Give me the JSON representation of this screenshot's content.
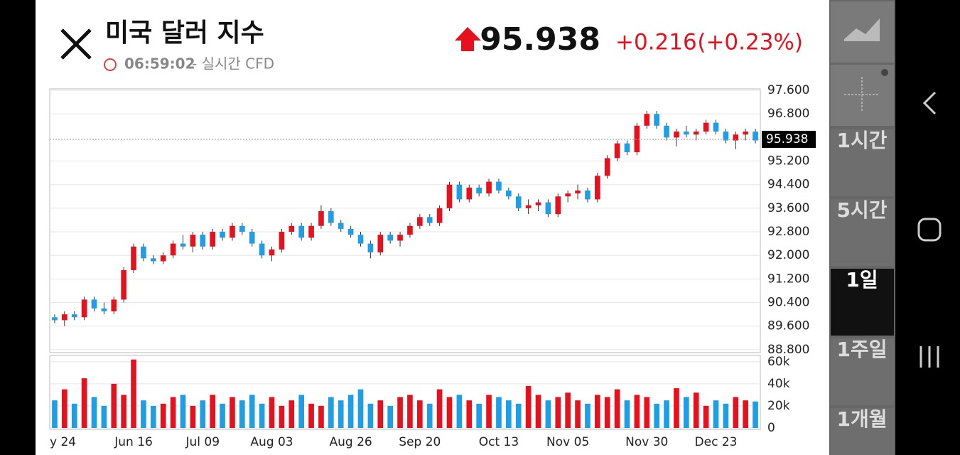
{
  "header": {
    "title": "미국 달러 지수",
    "time": "06:59:02",
    "source": "- 실시간 CFD",
    "price": "95.938",
    "change": "+0.216",
    "change_pct": "(+0.23%)"
  },
  "sidebar": {
    "items": [
      "1시간",
      "5시간",
      "1일",
      "1주일",
      "1개월"
    ],
    "selected": "1일"
  },
  "chart_data": {
    "type": "candlestick",
    "up_color": "#e8101c",
    "down_color": "#1e9ee6",
    "categories": [
      "y 24",
      null,
      null,
      null,
      null,
      null,
      null,
      null,
      "Jun 16",
      null,
      null,
      null,
      null,
      null,
      null,
      "Jul 09",
      null,
      null,
      null,
      null,
      null,
      null,
      "Aug 03",
      null,
      null,
      null,
      null,
      null,
      null,
      null,
      "Aug 26",
      null,
      null,
      null,
      null,
      null,
      null,
      "Sep 20",
      null,
      null,
      null,
      null,
      null,
      null,
      null,
      "Oct 13",
      null,
      null,
      null,
      null,
      null,
      null,
      "Nov 05",
      null,
      null,
      null,
      null,
      null,
      null,
      null,
      "Nov 30",
      null,
      null,
      null,
      null,
      null,
      null,
      "Dec 23",
      null,
      null,
      null,
      null
    ],
    "ohlc": [
      [
        89.9,
        90.0,
        89.7,
        89.8
      ],
      [
        89.8,
        90.1,
        89.6,
        90.0
      ],
      [
        90.0,
        90.1,
        89.8,
        89.9
      ],
      [
        89.9,
        90.6,
        89.8,
        90.5
      ],
      [
        90.5,
        90.6,
        90.1,
        90.2
      ],
      [
        90.2,
        90.4,
        90.0,
        90.1
      ],
      [
        90.1,
        90.6,
        90.0,
        90.5
      ],
      [
        90.5,
        91.6,
        90.4,
        91.5
      ],
      [
        91.5,
        92.4,
        91.4,
        92.3
      ],
      [
        92.3,
        92.4,
        91.8,
        91.9
      ],
      [
        91.9,
        92.0,
        91.7,
        91.8
      ],
      [
        91.8,
        92.1,
        91.7,
        92.0
      ],
      [
        92.0,
        92.5,
        91.9,
        92.4
      ],
      [
        92.4,
        92.7,
        92.2,
        92.3
      ],
      [
        92.3,
        92.8,
        92.1,
        92.7
      ],
      [
        92.7,
        92.8,
        92.2,
        92.3
      ],
      [
        92.3,
        92.9,
        92.2,
        92.8
      ],
      [
        92.8,
        92.9,
        92.5,
        92.6
      ],
      [
        92.6,
        93.1,
        92.5,
        93.0
      ],
      [
        93.0,
        93.1,
        92.7,
        92.8
      ],
      [
        92.8,
        92.9,
        92.3,
        92.4
      ],
      [
        92.4,
        92.5,
        91.9,
        92.0
      ],
      [
        92.0,
        92.3,
        91.8,
        92.2
      ],
      [
        92.2,
        92.9,
        92.1,
        92.8
      ],
      [
        92.8,
        93.1,
        92.7,
        93.0
      ],
      [
        93.0,
        93.1,
        92.5,
        92.6
      ],
      [
        92.6,
        93.1,
        92.5,
        93.0
      ],
      [
        93.0,
        93.7,
        92.9,
        93.5
      ],
      [
        93.5,
        93.6,
        93.0,
        93.1
      ],
      [
        93.1,
        93.2,
        92.8,
        92.9
      ],
      [
        92.9,
        93.0,
        92.6,
        92.7
      ],
      [
        92.7,
        92.8,
        92.3,
        92.4
      ],
      [
        92.4,
        92.5,
        91.9,
        92.1
      ],
      [
        92.1,
        92.8,
        92.0,
        92.7
      ],
      [
        92.7,
        92.8,
        92.4,
        92.5
      ],
      [
        92.5,
        92.8,
        92.3,
        92.7
      ],
      [
        92.7,
        93.1,
        92.6,
        93.0
      ],
      [
        93.0,
        93.4,
        92.9,
        93.3
      ],
      [
        93.3,
        93.4,
        93.0,
        93.1
      ],
      [
        93.1,
        93.7,
        93.0,
        93.6
      ],
      [
        93.6,
        94.5,
        93.5,
        94.4
      ],
      [
        94.4,
        94.5,
        93.8,
        93.9
      ],
      [
        93.9,
        94.4,
        93.8,
        94.3
      ],
      [
        94.3,
        94.4,
        94.0,
        94.1
      ],
      [
        94.1,
        94.6,
        94.0,
        94.5
      ],
      [
        94.5,
        94.6,
        94.1,
        94.2
      ],
      [
        94.2,
        94.3,
        93.9,
        94.0
      ],
      [
        94.0,
        94.1,
        93.5,
        93.6
      ],
      [
        93.6,
        93.9,
        93.4,
        93.7
      ],
      [
        93.7,
        93.9,
        93.5,
        93.8
      ],
      [
        93.8,
        93.9,
        93.3,
        93.4
      ],
      [
        93.4,
        94.1,
        93.3,
        94.0
      ],
      [
        94.0,
        94.2,
        93.8,
        94.1
      ],
      [
        94.1,
        94.4,
        93.9,
        94.2
      ],
      [
        94.2,
        94.3,
        93.8,
        93.9
      ],
      [
        93.9,
        94.8,
        93.8,
        94.7
      ],
      [
        94.7,
        95.4,
        94.6,
        95.3
      ],
      [
        95.3,
        95.9,
        95.2,
        95.8
      ],
      [
        95.8,
        95.9,
        95.4,
        95.5
      ],
      [
        95.5,
        96.5,
        95.4,
        96.4
      ],
      [
        96.4,
        96.9,
        96.3,
        96.8
      ],
      [
        96.8,
        96.9,
        96.3,
        96.4
      ],
      [
        96.4,
        96.5,
        95.9,
        96.0
      ],
      [
        96.0,
        96.3,
        95.7,
        96.2
      ],
      [
        96.2,
        96.4,
        96.0,
        96.1
      ],
      [
        96.1,
        96.3,
        95.9,
        96.2
      ],
      [
        96.2,
        96.6,
        96.1,
        96.5
      ],
      [
        96.5,
        96.6,
        96.1,
        96.2
      ],
      [
        96.2,
        96.3,
        95.8,
        95.9
      ],
      [
        95.9,
        96.2,
        95.6,
        96.1
      ],
      [
        96.1,
        96.3,
        95.9,
        96.2
      ],
      [
        96.2,
        96.3,
        95.8,
        95.9
      ]
    ],
    "volume": [
      25000,
      35000,
      22000,
      45000,
      28000,
      20000,
      40000,
      30000,
      62000,
      25000,
      20000,
      22000,
      28000,
      30000,
      20000,
      25000,
      30000,
      22000,
      28000,
      25000,
      30000,
      22000,
      28000,
      20000,
      25000,
      30000,
      22000,
      20000,
      28000,
      25000,
      30000,
      35000,
      22000,
      25000,
      20000,
      28000,
      30000,
      25000,
      22000,
      35000,
      28000,
      30000,
      25000,
      22000,
      30000,
      28000,
      25000,
      22000,
      38000,
      30000,
      25000,
      28000,
      32000,
      25000,
      22000,
      30000,
      28000,
      35000,
      25000,
      30000,
      28000,
      22000,
      25000,
      36000,
      28000,
      32000,
      20000,
      25000,
      22000,
      28000,
      25000,
      24000
    ],
    "last_price": 95.938,
    "ylim": [
      88.7,
      97.65
    ],
    "yticks": [
      {
        "value": 88.8,
        "label": "88.800"
      },
      {
        "value": 89.6,
        "label": "89.600"
      },
      {
        "value": 90.4,
        "label": "90.400"
      },
      {
        "value": 91.2,
        "label": "91.200"
      },
      {
        "value": 92.0,
        "label": "92.000"
      },
      {
        "value": 92.8,
        "label": "92.800"
      },
      {
        "value": 93.6,
        "label": "93.600"
      },
      {
        "value": 94.4,
        "label": "94.400"
      },
      {
        "value": 95.2,
        "label": "95.200"
      },
      {
        "value": 96.8,
        "label": "96.800"
      },
      {
        "value": 97.6,
        "label": "97.600"
      }
    ],
    "vlim": [
      0,
      65000
    ],
    "vticks": [
      0,
      {
        "value": 20000,
        "label": "20k"
      },
      {
        "value": 40000,
        "label": "40k"
      },
      {
        "value": 60000,
        "label": "60k"
      }
    ],
    "grid": true
  }
}
